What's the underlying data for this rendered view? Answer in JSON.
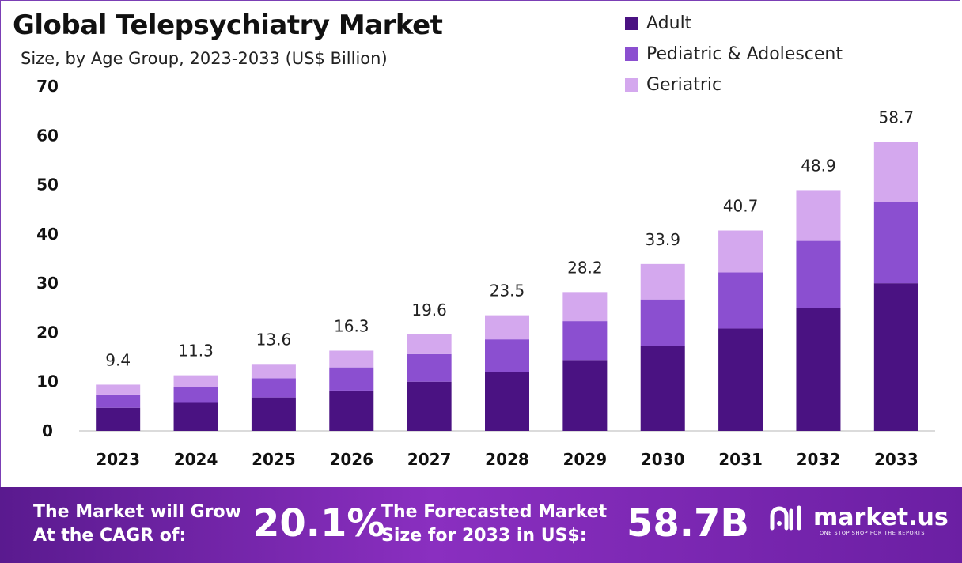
{
  "title": "Global Telepsychiatry Market",
  "subtitle": "Size, by Age Group, 2023-2033 (US$ Billion)",
  "colors": {
    "adult": "#4a1282",
    "pediatric": "#8b4fd0",
    "geriatric": "#d4a8ee"
  },
  "legend": [
    "Adult",
    "Pediatric & Adolescent",
    "Geriatric"
  ],
  "chart_data": {
    "type": "bar",
    "stacked": true,
    "title": "Global Telepsychiatry Market",
    "subtitle": "Size, by Age Group, 2023-2033 (US$ Billion)",
    "categories": [
      "2023",
      "2024",
      "2025",
      "2026",
      "2027",
      "2028",
      "2029",
      "2030",
      "2031",
      "2032",
      "2033"
    ],
    "series": [
      {
        "name": "Adult",
        "values": [
          4.7,
          5.7,
          6.8,
          8.2,
          10.0,
          12.0,
          14.4,
          17.3,
          20.8,
          25.0,
          30.0
        ]
      },
      {
        "name": "Pediatric & Adolescent",
        "values": [
          2.7,
          3.2,
          3.9,
          4.7,
          5.6,
          6.6,
          7.9,
          9.4,
          11.4,
          13.6,
          16.5
        ]
      },
      {
        "name": "Geriatric",
        "values": [
          2.0,
          2.4,
          2.9,
          3.4,
          4.0,
          4.9,
          5.9,
          7.2,
          8.5,
          10.3,
          12.2
        ]
      }
    ],
    "totals": [
      "9.4",
      "11.3",
      "13.6",
      "16.3",
      "19.6",
      "23.5",
      "28.2",
      "33.9",
      "40.7",
      "48.9",
      "58.7"
    ],
    "yticks": [
      "0",
      "10",
      "20",
      "30",
      "40",
      "50",
      "60",
      "70"
    ],
    "ylim": [
      0,
      70
    ],
    "grid": false,
    "legend_position": "top-right"
  },
  "footer": {
    "cagr_label_line1": "The Market will Grow",
    "cagr_label_line2": "At the CAGR of:",
    "cagr_value": "20.1%",
    "forecast_label_line1": "The Forecasted Market",
    "forecast_label_line2": "Size for 2033 in US$:",
    "forecast_value": "58.7B",
    "brand": "market.us",
    "tagline": "ONE STOP SHOP FOR THE REPORTS"
  }
}
